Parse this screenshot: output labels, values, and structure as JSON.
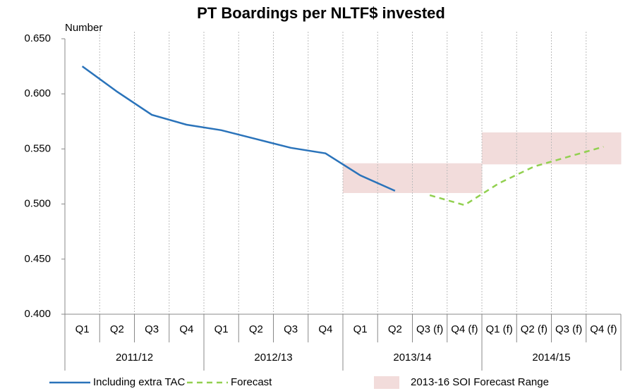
{
  "chart_data": {
    "type": "line",
    "title": "PT Boardings per NLTF$ invested",
    "y_label": "Number",
    "categories": [
      "Q1",
      "Q2",
      "Q3",
      "Q4",
      "Q1",
      "Q2",
      "Q3",
      "Q4",
      "Q1",
      "Q2",
      "Q3 (f)",
      "Q4 (f)",
      "Q1 (f)",
      "Q2 (f)",
      "Q3 (f)",
      "Q4 (f)"
    ],
    "groups": [
      {
        "label": "2011/12",
        "span": 4
      },
      {
        "label": "2012/13",
        "span": 4
      },
      {
        "label": "2013/14",
        "span": 4
      },
      {
        "label": "2014/15",
        "span": 4
      }
    ],
    "series": [
      {
        "name": "Including extra TAC",
        "color": "#2a73ba",
        "dashed": false,
        "values": [
          0.625,
          0.602,
          0.581,
          0.572,
          0.567,
          0.559,
          0.551,
          0.546,
          0.526,
          0.512,
          null,
          null,
          null,
          null,
          null,
          null
        ]
      },
      {
        "name": "Forecast",
        "color": "#92d050",
        "dashed": true,
        "values": [
          null,
          null,
          null,
          null,
          null,
          null,
          null,
          null,
          null,
          null,
          0.508,
          0.499,
          0.519,
          0.534,
          0.543,
          0.552
        ]
      }
    ],
    "range": {
      "name": "2013-16 SOI Forecast Range",
      "color": "#f2dcdb",
      "low": [
        null,
        null,
        null,
        null,
        null,
        null,
        null,
        null,
        0.51,
        0.51,
        0.51,
        0.51,
        0.536,
        0.536,
        0.536,
        0.536
      ],
      "high": [
        null,
        null,
        null,
        null,
        null,
        null,
        null,
        null,
        0.537,
        0.537,
        0.537,
        0.537,
        0.565,
        0.565,
        0.565,
        0.565
      ]
    },
    "ylim": [
      0.4,
      0.65
    ],
    "yticks": [
      {
        "value": 0.4,
        "label": "0.400"
      },
      {
        "value": 0.45,
        "label": "0.450"
      },
      {
        "value": 0.5,
        "label": "0.500"
      },
      {
        "value": 0.55,
        "label": "0.550"
      },
      {
        "value": 0.6,
        "label": "0.600"
      },
      {
        "value": 0.65,
        "label": "0.650"
      }
    ],
    "grid": true
  }
}
